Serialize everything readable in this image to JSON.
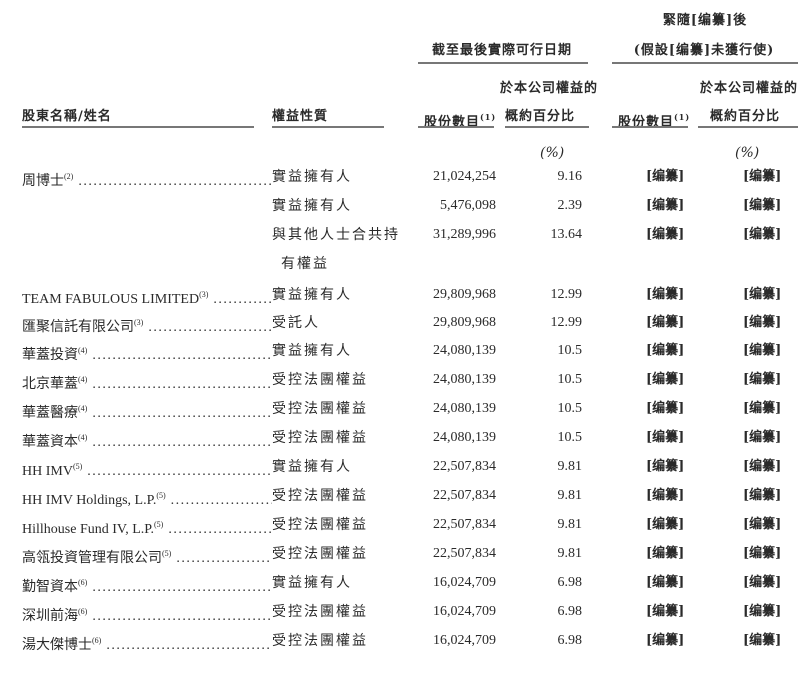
{
  "header": {
    "after_title": "緊隨[编纂]後",
    "current_group": "截至最後實際可行日期",
    "after_group": "(假設[编纂]未獲行使)",
    "col_name": "股東名稱/姓名",
    "col_nature": "權益性質",
    "col_shares": "股份數目",
    "col_shares_note": "(1)",
    "col_pct_line1": "於本公司權益的",
    "col_pct_line2": "概約百分比",
    "col_shares_after": "股份數目",
    "col_shares_after_note": "(1)",
    "col_pct_after_line1": "於本公司權益的",
    "col_pct_after_line2": "概約百分比",
    "pct_unit": "(%)",
    "pct_unit_after": "(%)"
  },
  "rows": [
    {
      "name": "周博士",
      "note": "(2)",
      "nature": "實益擁有人",
      "shares": "21,024,254",
      "pct": "9.16",
      "shares_after": "[编纂]",
      "pct_after": "[编纂]"
    },
    {
      "name": "",
      "note": "",
      "nature": "實益擁有人",
      "shares": "5,476,098",
      "pct": "2.39",
      "shares_after": "[编纂]",
      "pct_after": "[编纂]"
    },
    {
      "name": "",
      "note": "",
      "nature": "與其他人士合共持",
      "nature2": "有權益",
      "shares": "31,289,996",
      "pct": "13.64",
      "shares_after": "[编纂]",
      "pct_after": "[编纂]"
    },
    {
      "name": "TEAM FABULOUS LIMITED",
      "note": "(3)",
      "nature": "實益擁有人",
      "shares": "29,809,968",
      "pct": "12.99",
      "shares_after": "[编纂]",
      "pct_after": "[编纂]"
    },
    {
      "name": "匯聚信託有限公司",
      "note": "(3)",
      "nature": "受託人",
      "shares": "29,809,968",
      "pct": "12.99",
      "shares_after": "[编纂]",
      "pct_after": "[编纂]"
    },
    {
      "name": "華蓋投資",
      "note": "(4)",
      "nature": "實益擁有人",
      "shares": "24,080,139",
      "pct": "10.5",
      "shares_after": "[编纂]",
      "pct_after": "[编纂]"
    },
    {
      "name": "北京華蓋",
      "note": "(4)",
      "nature": "受控法團權益",
      "shares": "24,080,139",
      "pct": "10.5",
      "shares_after": "[编纂]",
      "pct_after": "[编纂]"
    },
    {
      "name": "華蓋醫療",
      "note": "(4)",
      "nature": "受控法團權益",
      "shares": "24,080,139",
      "pct": "10.5",
      "shares_after": "[编纂]",
      "pct_after": "[编纂]"
    },
    {
      "name": "華蓋資本",
      "note": "(4)",
      "nature": "受控法團權益",
      "shares": "24,080,139",
      "pct": "10.5",
      "shares_after": "[编纂]",
      "pct_after": "[编纂]"
    },
    {
      "name": "HH IMV",
      "note": "(5)",
      "nature": "實益擁有人",
      "shares": "22,507,834",
      "pct": "9.81",
      "shares_after": "[编纂]",
      "pct_after": "[编纂]"
    },
    {
      "name": "HH IMV Holdings, L.P.",
      "note": "(5)",
      "nature": "受控法團權益",
      "shares": "22,507,834",
      "pct": "9.81",
      "shares_after": "[编纂]",
      "pct_after": "[编纂]"
    },
    {
      "name": "Hillhouse Fund IV, L.P.",
      "note": "(5)",
      "nature": "受控法團權益",
      "shares": "22,507,834",
      "pct": "9.81",
      "shares_after": "[编纂]",
      "pct_after": "[编纂]"
    },
    {
      "name": "高瓴投資管理有限公司",
      "note": "(5)",
      "nature": "受控法團權益",
      "shares": "22,507,834",
      "pct": "9.81",
      "shares_after": "[编纂]",
      "pct_after": "[编纂]"
    },
    {
      "name": "勤智資本",
      "note": "(6)",
      "nature": "實益擁有人",
      "shares": "16,024,709",
      "pct": "6.98",
      "shares_after": "[编纂]",
      "pct_after": "[编纂]"
    },
    {
      "name": "深圳前海",
      "note": "(6)",
      "nature": "受控法團權益",
      "shares": "16,024,709",
      "pct": "6.98",
      "shares_after": "[编纂]",
      "pct_after": "[编纂]"
    },
    {
      "name": "湯大傑博士",
      "note": "(6)",
      "nature": "受控法團權益",
      "shares": "16,024,709",
      "pct": "6.98",
      "shares_after": "[编纂]",
      "pct_after": "[编纂]"
    }
  ]
}
